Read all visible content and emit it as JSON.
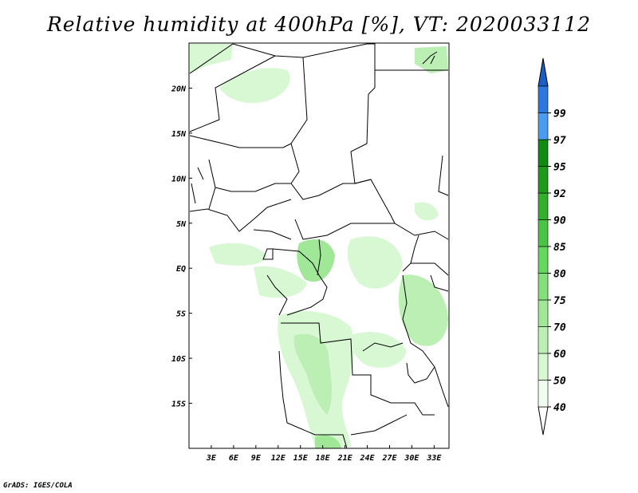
{
  "title": "Relative humidity at 400hPa [%], VT: 2020033112",
  "credit": "GrADS: IGES/COLA",
  "map": {
    "lon_range": [
      0,
      35
    ],
    "lat_range": [
      -20,
      25
    ],
    "lat_ticks": [
      {
        "value": 20,
        "label": "20N"
      },
      {
        "value": 15,
        "label": "15N"
      },
      {
        "value": 10,
        "label": "10N"
      },
      {
        "value": 5,
        "label": "5N"
      },
      {
        "value": 0,
        "label": "EQ"
      },
      {
        "value": -5,
        "label": "5S"
      },
      {
        "value": -10,
        "label": "10S"
      },
      {
        "value": -15,
        "label": "15S"
      }
    ],
    "lon_ticks": [
      {
        "value": 3,
        "label": "3E"
      },
      {
        "value": 6,
        "label": "6E"
      },
      {
        "value": 9,
        "label": "9E"
      },
      {
        "value": 12,
        "label": "12E"
      },
      {
        "value": 15,
        "label": "15E"
      },
      {
        "value": 18,
        "label": "18E"
      },
      {
        "value": 21,
        "label": "21E"
      },
      {
        "value": 24,
        "label": "24E"
      },
      {
        "value": 27,
        "label": "27E"
      },
      {
        "value": 30,
        "label": "30E"
      },
      {
        "value": 33,
        "label": "33E"
      }
    ]
  },
  "colorbar": {
    "levels": [
      {
        "label": "40",
        "color": "#f0fff0"
      },
      {
        "label": "50",
        "color": "#d8f8d4"
      },
      {
        "label": "60",
        "color": "#bcefb4"
      },
      {
        "label": "70",
        "color": "#a0e898"
      },
      {
        "label": "75",
        "color": "#84e07c"
      },
      {
        "label": "80",
        "color": "#64d85c"
      },
      {
        "label": "85",
        "color": "#4ac444"
      },
      {
        "label": "90",
        "color": "#32b02c"
      },
      {
        "label": "92",
        "color": "#1e9a1a"
      },
      {
        "label": "95",
        "color": "#108a10"
      },
      {
        "label": "97",
        "color": "#4a9cf0"
      },
      {
        "label": "99",
        "color": "#2c78e0"
      }
    ],
    "top_color": "#1a5ec8",
    "bottom_color": "#ffffff"
  }
}
